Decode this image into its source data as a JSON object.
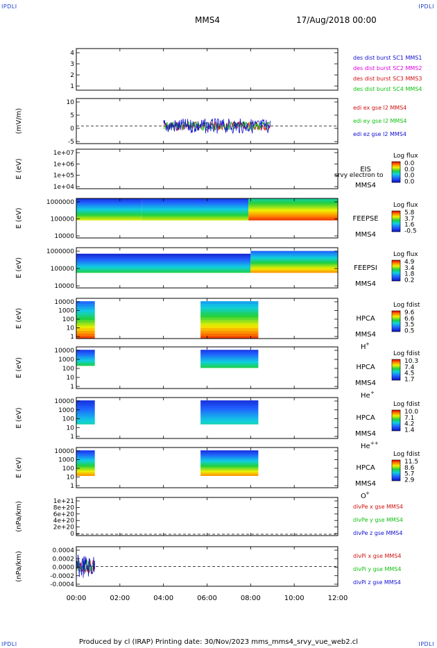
{
  "corners": [
    "IPDLI",
    "IPDLI",
    "IPDLI",
    "IPDLI"
  ],
  "header": {
    "spacecraft": "MMS4",
    "date": "17/Aug/2018 00:00"
  },
  "footer": {
    "text": "Produced by cl (IRAP)   Printing date: 30/Nov/2023   mms_mms4_srvy_vue_web2.cl"
  },
  "colors": {
    "red": "#d01010",
    "magenta": "#e000e0",
    "green": "#10c010",
    "blue": "#1010d0",
    "frame": "#000000"
  },
  "chart_data": [
    {
      "type": "line",
      "id": "des-dist",
      "ylabel": "",
      "yticks": [
        "1",
        "2",
        "3",
        "4"
      ],
      "ylim": [
        1,
        4
      ],
      "x_ticks": [
        "00:00",
        "02:00",
        "04:00",
        "06:00",
        "08:00",
        "10:00",
        "12:00"
      ],
      "xlim_hours": [
        0,
        12
      ],
      "legend": [
        {
          "text": "des dist burst SC1 MMS1",
          "color": "#1010d0"
        },
        {
          "text": "des dist burst SC2 MMS2",
          "color": "#e000e0"
        },
        {
          "text": "des dist burst SC3 MMS3",
          "color": "#d01010"
        },
        {
          "text": "des dist burst SC4 MMS4",
          "color": "#10c010"
        }
      ],
      "series": []
    },
    {
      "type": "line",
      "id": "edi-e",
      "ylabel": "(mV/m)",
      "yticks": [
        "-5",
        "0",
        "5",
        "10"
      ],
      "ylim": [
        -7,
        11
      ],
      "zero_line": true,
      "legend": [
        {
          "text": "edi ex gse l2 MMS4",
          "color": "#d01010"
        },
        {
          "text": "edi ey gse l2 MMS4",
          "color": "#10c010"
        },
        {
          "text": "edi ez gse l2 MMS4",
          "color": "#1010d0"
        }
      ],
      "active_intervals_hours": [
        [
          4.0,
          8.9
        ]
      ],
      "amplitude": 3
    },
    {
      "type": "heatmap",
      "id": "eis",
      "ylabel": "E (eV)",
      "yticks": [
        "1e+04",
        "1e+05",
        "1e+06",
        "1e+07"
      ],
      "right_labels": [
        "EIS",
        "MMS4"
      ],
      "overlap_label": "srvy electron to",
      "colorbar": {
        "title": "Log flux",
        "ticks": [
          "0.0",
          "0.0",
          "0.0",
          "0.0"
        ]
      },
      "blocks": []
    },
    {
      "type": "heatmap",
      "id": "feeps-e",
      "ylabel": "E (eV)",
      "yticks": [
        "10000",
        "100000",
        "1000000"
      ],
      "right_labels": [
        "FEEPSE",
        "MMS4"
      ],
      "colorbar": {
        "title": "Log flux",
        "ticks": [
          "5.8",
          "3.7",
          "1.6",
          "-0.5"
        ]
      },
      "blocks": [
        {
          "t0": 0.0,
          "t1": 3.0,
          "lo": 0.45,
          "hi": 1.0,
          "c_lo": 0.72,
          "c_hi": 0.08
        },
        {
          "t0": 3.0,
          "t1": 7.9,
          "lo": 0.45,
          "hi": 1.0,
          "c_lo": 0.7,
          "c_hi": 0.1
        },
        {
          "t0": 7.9,
          "t1": 12.0,
          "lo": 0.45,
          "hi": 1.0,
          "c_lo": 0.95,
          "c_hi": 0.45
        }
      ]
    },
    {
      "type": "heatmap",
      "id": "feeps-i",
      "ylabel": "E (eV)",
      "yticks": [
        "10000",
        "100000",
        "1000000"
      ],
      "right_labels": [
        "FEEPSI",
        "MMS4"
      ],
      "colorbar": {
        "title": "Log flux",
        "ticks": [
          "4.9",
          "3.4",
          "1.8",
          "0.2"
        ]
      },
      "blocks": [
        {
          "t0": 0.0,
          "t1": 8.0,
          "lo": 0.38,
          "hi": 0.85,
          "c_lo": 0.55,
          "c_hi": 0.05
        },
        {
          "t0": 8.0,
          "t1": 12.0,
          "lo": 0.38,
          "hi": 0.92,
          "c_lo": 0.85,
          "c_hi": 0.2
        }
      ]
    },
    {
      "type": "heatmap",
      "id": "hpca-h",
      "ylabel": "E (eV)",
      "yticks": [
        "1",
        "10",
        "100",
        "1000",
        "10000"
      ],
      "right_labels": [
        "HPCA",
        "MMS4"
      ],
      "species": "H",
      "charge": "+",
      "colorbar": {
        "title": "Log fdist",
        "ticks": [
          "9.6",
          "6.6",
          "3.5",
          "0.5"
        ]
      },
      "blocks": [
        {
          "t0": 0.0,
          "t1": 0.85,
          "lo": 0.0,
          "hi": 0.93,
          "c_lo": 0.95,
          "c_hi": 0.2
        },
        {
          "t0": 5.7,
          "t1": 8.35,
          "lo": 0.0,
          "hi": 0.93,
          "c_lo": 0.95,
          "c_hi": 0.3
        }
      ]
    },
    {
      "type": "heatmap",
      "id": "hpca-he",
      "ylabel": "E (eV)",
      "yticks": [
        "1",
        "10",
        "100",
        "1000",
        "10000"
      ],
      "right_labels": [
        "HPCA",
        "MMS4"
      ],
      "species": "He",
      "charge": "+",
      "colorbar": {
        "title": "Log fdist",
        "ticks": [
          "10.3",
          "7.4",
          "4.5",
          "1.7"
        ]
      },
      "blocks": [
        {
          "t0": 0.0,
          "t1": 0.85,
          "lo": 0.55,
          "hi": 0.93,
          "c_lo": 0.55,
          "c_hi": 0.1
        },
        {
          "t0": 5.7,
          "t1": 8.35,
          "lo": 0.5,
          "hi": 0.93,
          "c_lo": 0.55,
          "c_hi": 0.1
        }
      ]
    },
    {
      "type": "heatmap",
      "id": "hpca-hepp",
      "ylabel": "E (eV)",
      "yticks": [
        "1",
        "10",
        "100",
        "1000",
        "10000"
      ],
      "right_labels": [
        "HPCA",
        "MMS4"
      ],
      "species": "He",
      "charge": "++",
      "colorbar": {
        "title": "Log fdist",
        "ticks": [
          "10.0",
          "7.1",
          "4.2",
          "1.4"
        ]
      },
      "blocks": [
        {
          "t0": 0.0,
          "t1": 0.85,
          "lo": 0.35,
          "hi": 0.93,
          "c_lo": 0.45,
          "c_hi": 0.08
        },
        {
          "t0": 5.7,
          "t1": 8.35,
          "lo": 0.35,
          "hi": 0.93,
          "c_lo": 0.45,
          "c_hi": 0.08
        }
      ]
    },
    {
      "type": "heatmap",
      "id": "hpca-o",
      "ylabel": "E (eV)",
      "yticks": [
        "1",
        "10",
        "100",
        "1000",
        "10000"
      ],
      "right_labels": [
        "HPCA",
        "MMS4"
      ],
      "species": "O",
      "charge": "+",
      "colorbar": {
        "title": "Log fdist",
        "ticks": [
          "11.5",
          "8.6",
          "5.7",
          "2.9"
        ]
      },
      "blocks": [
        {
          "t0": 0.0,
          "t1": 0.85,
          "lo": 0.3,
          "hi": 0.93,
          "c_lo": 0.85,
          "c_hi": 0.1
        },
        {
          "t0": 5.7,
          "t1": 8.35,
          "lo": 0.3,
          "hi": 0.93,
          "c_lo": 0.85,
          "c_hi": 0.08
        }
      ]
    },
    {
      "type": "line",
      "id": "divpe",
      "ylabel": "(nPa/km)",
      "yticks": [
        "0",
        "2e+20",
        "4e+20",
        "6e+20",
        "8e+20",
        "1e+21"
      ],
      "ylim": [
        0,
        1e+21
      ],
      "zero_line": true,
      "legend": [
        {
          "text": "divPe x gse MMS4",
          "color": "#d01010"
        },
        {
          "text": "divPe y gse MMS4",
          "color": "#10c010"
        },
        {
          "text": "divPe z gse MMS4",
          "color": "#1010d0"
        }
      ],
      "active_intervals_hours": []
    },
    {
      "type": "line",
      "id": "divpi",
      "ylabel": "(nPa/km)",
      "yticks": [
        "-0.0004",
        "-0.0002",
        "0.0000",
        "0.0002",
        "0.0004"
      ],
      "ylim": [
        -0.0005,
        0.0005
      ],
      "zero_line": true,
      "legend": [
        {
          "text": "divPi x gse MMS4",
          "color": "#d01010"
        },
        {
          "text": "divPi y gse MMS4",
          "color": "#10c010"
        },
        {
          "text": "divPi z gse MMS4",
          "color": "#1010d0"
        }
      ],
      "active_intervals_hours": [
        [
          0.0,
          0.85
        ]
      ],
      "amplitude": 0.0003
    }
  ],
  "x_axis": {
    "ticks": [
      "00:00",
      "02:00",
      "04:00",
      "06:00",
      "08:00",
      "10:00",
      "12:00"
    ],
    "xlim_hours": [
      0,
      12
    ]
  }
}
